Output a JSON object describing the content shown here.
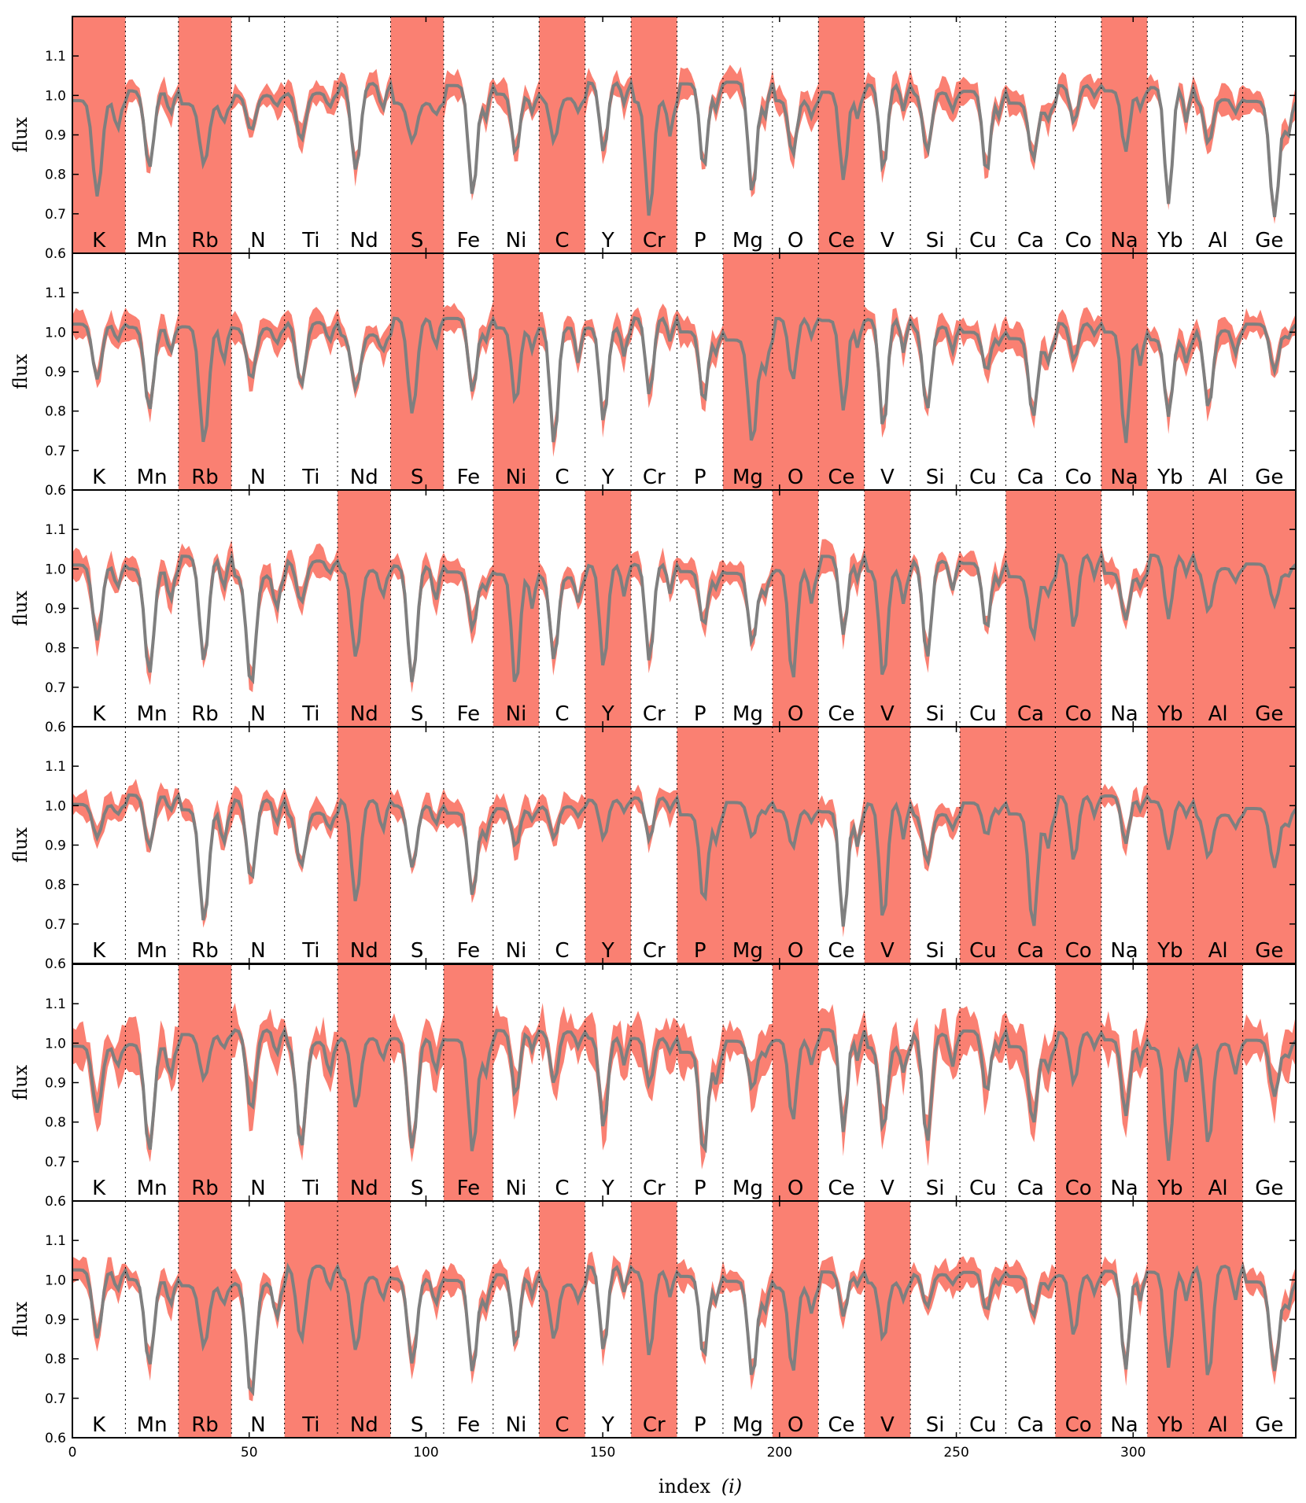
{
  "chart_data": {
    "type": "line",
    "ylabel": "flux",
    "xlabel": "index",
    "xlabel_var": "(i)",
    "xlim": [
      0,
      346
    ],
    "ylim": [
      0.6,
      1.2
    ],
    "yticks": [
      "0.6",
      "0.7",
      "0.8",
      "0.9",
      "1.0",
      "1.1"
    ],
    "xticks": [
      "0",
      "50",
      "100",
      "150",
      "200",
      "250",
      "300"
    ],
    "xtick_values": [
      0,
      50,
      100,
      150,
      200,
      250,
      300
    ],
    "element_boundaries": [
      15,
      30,
      45,
      60,
      75,
      90,
      105,
      119,
      132,
      145,
      158,
      171,
      184,
      198,
      211,
      224,
      237,
      251,
      264,
      278,
      291,
      304,
      317,
      331
    ],
    "elements": [
      "K",
      "Mn",
      "Rb",
      "N",
      "Ti",
      "Nd",
      "S",
      "Fe",
      "Ni",
      "C",
      "Y",
      "Cr",
      "P",
      "Mg",
      "O",
      "Ce",
      "V",
      "Si",
      "Cu",
      "Ca",
      "Co",
      "Na",
      "Yb",
      "Al",
      "Ge"
    ],
    "series": [
      {
        "name": "",
        "color": "#7f7f7f"
      },
      {
        "name": "",
        "color": "#fa8072"
      }
    ],
    "panels": [
      {
        "masked_bins": [
          0,
          2,
          6,
          9,
          11,
          15,
          21
        ]
      },
      {
        "masked_bins": [
          2,
          6,
          8,
          13,
          14,
          15,
          21
        ]
      },
      {
        "masked_bins": [
          5,
          8,
          10,
          14,
          16,
          19,
          20,
          22,
          23,
          24
        ]
      },
      {
        "masked_bins": [
          5,
          10,
          12,
          13,
          14,
          16,
          18,
          19,
          20,
          22,
          23,
          24
        ]
      },
      {
        "masked_bins": [
          2,
          5,
          7,
          14,
          20,
          22,
          23
        ]
      },
      {
        "masked_bins": [
          2,
          4,
          5,
          9,
          11,
          14,
          16,
          20,
          22,
          23
        ]
      }
    ]
  }
}
